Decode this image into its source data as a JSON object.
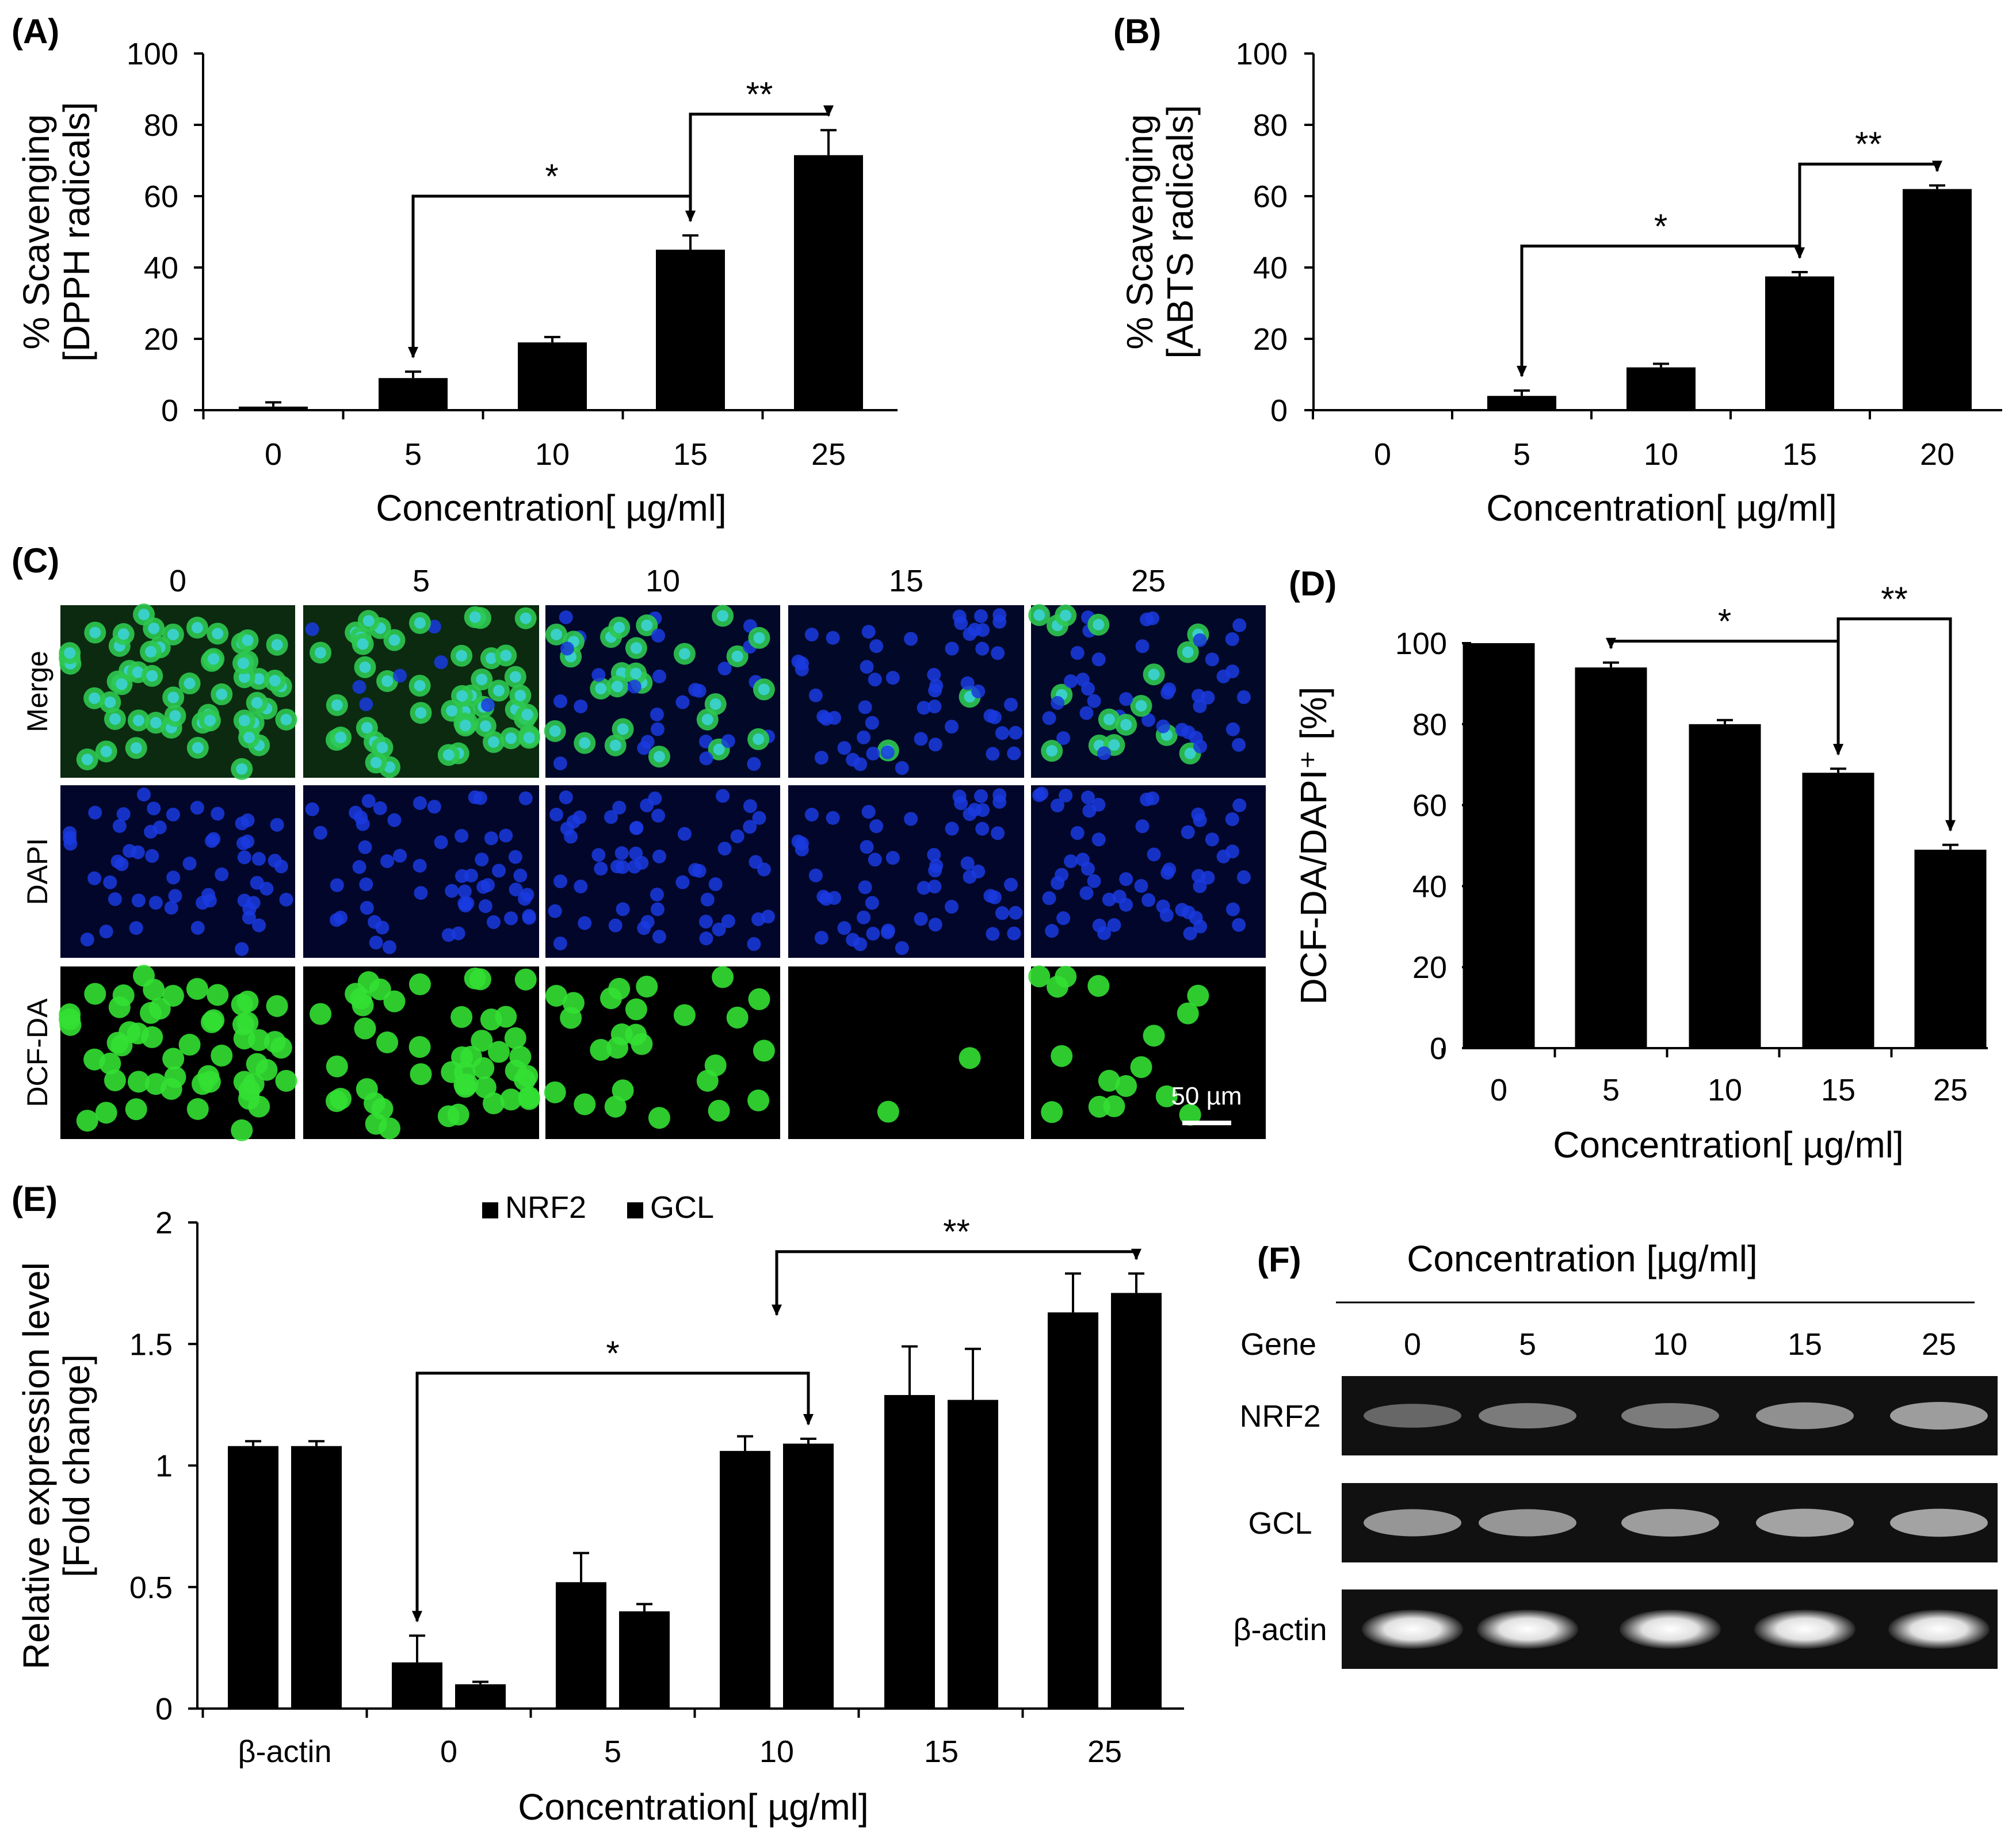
{
  "panel_labels": {
    "a": "(A)",
    "b": "(B)",
    "c": "(C)",
    "d": "(D)",
    "e": "(E)",
    "f": "(F)"
  },
  "chart_data": [
    {
      "id": "A",
      "type": "bar",
      "categories": [
        "0",
        "5",
        "10",
        "15",
        "25"
      ],
      "values": [
        1,
        9,
        19,
        45,
        71.5
      ],
      "errors": [
        1.2,
        1.8,
        1.5,
        4,
        7
      ],
      "ylim": [
        0,
        100
      ],
      "yticks": [
        0,
        20,
        40,
        60,
        80,
        100
      ],
      "ylabel": [
        "% Scavenging",
        "[DPPH radicals]"
      ],
      "xlabel": "Concentration[ µg/ml]",
      "significance": [
        {
          "from": 1,
          "to": 3,
          "level": 60,
          "label": "*"
        },
        {
          "from": 3,
          "to": 4,
          "level": 83,
          "label": "**"
        }
      ]
    },
    {
      "id": "B",
      "type": "bar",
      "categories": [
        "0",
        "5",
        "10",
        "15",
        "20"
      ],
      "values": [
        0,
        4,
        12,
        37.5,
        62
      ],
      "errors": [
        0,
        1.5,
        1,
        1.2,
        1
      ],
      "ylim": [
        0,
        100
      ],
      "yticks": [
        0,
        20,
        40,
        60,
        80,
        100
      ],
      "ylabel": [
        "% Scavenging",
        "[ABTS radicals]"
      ],
      "xlabel": "Concentration[ µg/ml]",
      "significance": [
        {
          "from": 1,
          "to": 3,
          "level": 46,
          "label": "*"
        },
        {
          "from": 3,
          "to": 4,
          "level": 69,
          "label": "**"
        }
      ]
    },
    {
      "id": "D",
      "type": "bar",
      "categories": [
        "0",
        "5",
        "10",
        "15",
        "25"
      ],
      "values": [
        100,
        94,
        80,
        68,
        49
      ],
      "errors": [
        0,
        1.2,
        1,
        1,
        1.2
      ],
      "ylim": [
        0,
        100
      ],
      "yticks": [
        0,
        20,
        40,
        60,
        80,
        100
      ],
      "ylabel": [
        "DCF-DA/DAPI⁺ [%]"
      ],
      "xlabel": "Concentration[ µg/ml]",
      "significance": [
        {
          "from": 1,
          "to": 3,
          "level": 100.5,
          "label": "*"
        },
        {
          "from": 3,
          "to": 4,
          "level": 106,
          "label": "**"
        }
      ]
    },
    {
      "id": "E",
      "type": "bar",
      "categories": [
        "β-actin",
        "0",
        "5",
        "10",
        "15",
        "25"
      ],
      "series": [
        {
          "name": "NRF2",
          "values": [
            1.08,
            0.19,
            0.52,
            1.06,
            1.29,
            1.63
          ],
          "errors": [
            0.02,
            0.11,
            0.12,
            0.06,
            0.2,
            0.16
          ]
        },
        {
          "name": "GCL",
          "values": [
            1.08,
            0.1,
            0.4,
            1.09,
            1.27,
            1.71
          ],
          "errors": [
            0.02,
            0.01,
            0.03,
            0.02,
            0.21,
            0.08
          ]
        }
      ],
      "ylim": [
        0,
        2
      ],
      "yticks": [
        "0",
        "0.5",
        "1",
        "1.5",
        "2"
      ],
      "ylabel": [
        "Relative expression level",
        "[Fold change]"
      ],
      "xlabel": "Concentration[ µg/ml]",
      "significance": [
        {
          "from": [
            1,
            0
          ],
          "to": [
            3,
            1
          ],
          "level": 1.38,
          "label": "*"
        },
        {
          "from": [
            3,
            0.5
          ],
          "to": [
            5,
            1
          ],
          "level": 1.88,
          "label": "**"
        }
      ]
    }
  ],
  "panel_c": {
    "columns": [
      "0",
      "5",
      "10",
      "15",
      "25"
    ],
    "rows": [
      "Merge",
      "DAPI",
      "DCF-DA"
    ],
    "green_levels": [
      1.0,
      0.9,
      0.45,
      0.12,
      0.18
    ],
    "scale_bar": "50 µm"
  },
  "panel_f": {
    "title": "Concentration [µg/ml]",
    "gene_header": "Gene",
    "columns": [
      "0",
      "5",
      "10",
      "15",
      "25"
    ],
    "genes": [
      "NRF2",
      "GCL",
      "β-actin"
    ],
    "intensities": [
      [
        0.35,
        0.5,
        0.5,
        0.65,
        0.75
      ],
      [
        0.7,
        0.7,
        0.75,
        0.8,
        0.8
      ],
      [
        1,
        1,
        1,
        1,
        1
      ]
    ]
  },
  "colors": {
    "bar": "#000000",
    "axis": "#000000",
    "dapi": "#1a3be0",
    "dcf": "#33e033",
    "merge": "#3ad0c8"
  }
}
